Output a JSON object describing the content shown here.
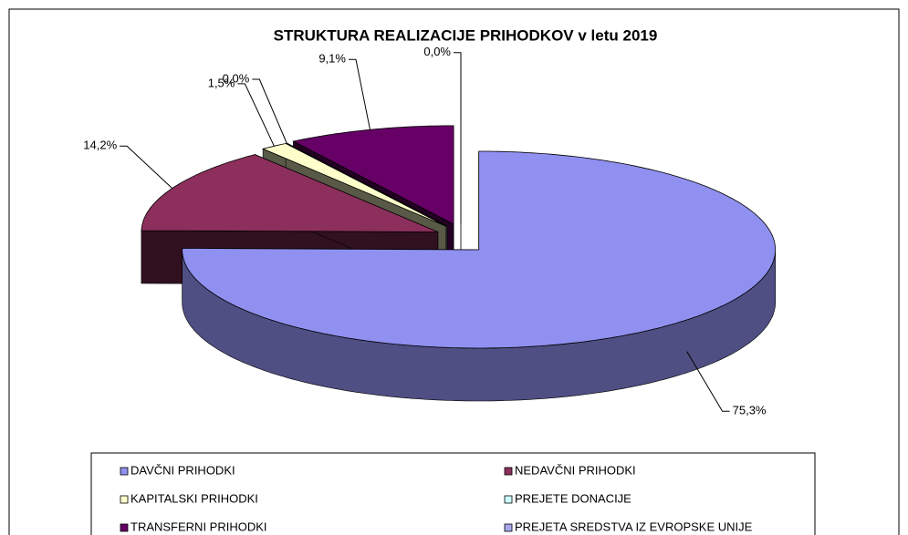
{
  "chart_data": {
    "type": "pie3d",
    "title": "STRUKTURA REALIZACIJE PRIHODKOV v letu 2019",
    "categories": [
      "DAVČNI PRIHODKI",
      "NEDAVČNI PRIHODKI",
      "KAPITALSKI PRIHODKI",
      "PREJETE DONACIJE",
      "TRANSFERNI PRIHODKI",
      "PREJETA SREDSTVA IZ EVROPSKE UNIJE"
    ],
    "values": [
      75.3,
      14.2,
      1.5,
      0.0,
      9.1,
      0.0
    ],
    "value_labels": [
      "75,3%",
      "14,2%",
      "1,5%",
      "0,0%",
      "9,1%",
      "0,0%"
    ],
    "colors": [
      "#9090f0",
      "#8c2f5c",
      "#ffffcc",
      "#ccffff",
      "#660066",
      "#a8a8ee"
    ],
    "legend": "bottom"
  }
}
